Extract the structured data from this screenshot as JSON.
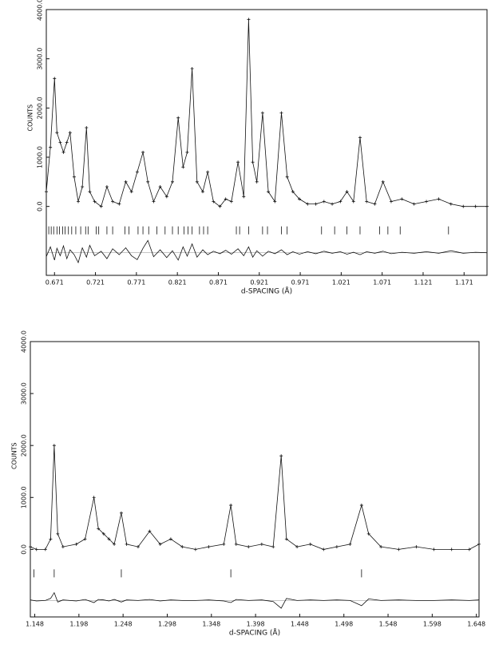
{
  "chart_data": [
    {
      "type": "line",
      "color": "#111",
      "ylabel": "COUNTS",
      "xlabel": "d-SPACING (Å)",
      "xlim": [
        0.661,
        1.199
      ],
      "ylim": [
        -1400,
        4000
      ],
      "xticks": [
        0.671,
        0.721,
        0.771,
        0.821,
        0.871,
        0.921,
        0.971,
        1.021,
        1.071,
        1.121,
        1.171
      ],
      "yticks": [
        {
          "value": 0,
          "label": "0.0"
        },
        {
          "value": 1000,
          "label": "1000.0"
        },
        {
          "value": 2000,
          "label": "2000.0"
        },
        {
          "value": 3000,
          "label": "3000.0"
        },
        {
          "value": 4000,
          "label": "4000.0"
        }
      ],
      "x": [
        0.661,
        0.666,
        0.671,
        0.674,
        0.678,
        0.682,
        0.686,
        0.69,
        0.695,
        0.7,
        0.705,
        0.71,
        0.714,
        0.72,
        0.728,
        0.735,
        0.742,
        0.75,
        0.758,
        0.765,
        0.772,
        0.779,
        0.785,
        0.792,
        0.8,
        0.808,
        0.815,
        0.822,
        0.828,
        0.833,
        0.839,
        0.845,
        0.852,
        0.858,
        0.865,
        0.873,
        0.88,
        0.887,
        0.895,
        0.902,
        0.908,
        0.913,
        0.918,
        0.925,
        0.932,
        0.94,
        0.948,
        0.955,
        0.962,
        0.97,
        0.98,
        0.99,
        1.0,
        1.01,
        1.02,
        1.028,
        1.036,
        1.044,
        1.052,
        1.062,
        1.072,
        1.082,
        1.095,
        1.11,
        1.125,
        1.14,
        1.155,
        1.17,
        1.185,
        1.199
      ],
      "values": [
        300,
        1200,
        2600,
        1500,
        1300,
        1100,
        1300,
        1500,
        600,
        100,
        400,
        1600,
        300,
        100,
        0,
        400,
        100,
        50,
        500,
        300,
        700,
        1100,
        500,
        100,
        400,
        200,
        500,
        1800,
        800,
        1100,
        2800,
        500,
        300,
        700,
        100,
        0,
        150,
        100,
        900,
        200,
        3800,
        900,
        500,
        1900,
        300,
        100,
        1900,
        600,
        300,
        150,
        50,
        50,
        100,
        50,
        100,
        300,
        100,
        1400,
        100,
        50,
        500,
        100,
        150,
        50,
        100,
        150,
        50,
        0,
        0,
        0
      ],
      "difference": [
        -80,
        120,
        -150,
        90,
        -60,
        140,
        -120,
        60,
        -40,
        -200,
        100,
        -90,
        150,
        -60,
        30,
        -120,
        80,
        -40,
        100,
        -60,
        -140,
        90,
        250,
        -80,
        60,
        -100,
        40,
        -150,
        120,
        -70,
        180,
        -90,
        60,
        -40,
        30,
        -20,
        50,
        -30,
        80,
        -60,
        120,
        -90,
        40,
        -70,
        30,
        -20,
        60,
        -40,
        20,
        -30,
        20,
        -20,
        30,
        -10,
        20,
        -30,
        10,
        -40,
        20,
        -10,
        30,
        -20,
        10,
        -10,
        20,
        -10,
        40,
        -10,
        10,
        0
      ],
      "reflections": [
        0.664,
        0.667,
        0.67,
        0.674,
        0.677,
        0.681,
        0.684,
        0.688,
        0.692,
        0.697,
        0.703,
        0.709,
        0.712,
        0.722,
        0.725,
        0.735,
        0.742,
        0.757,
        0.762,
        0.773,
        0.779,
        0.786,
        0.796,
        0.806,
        0.815,
        0.822,
        0.829,
        0.834,
        0.839,
        0.848,
        0.853,
        0.858,
        0.893,
        0.897,
        0.908,
        0.925,
        0.931,
        0.948,
        0.955,
        0.997,
        1.013,
        1.028,
        1.044,
        1.068,
        1.078,
        1.093,
        1.152
      ]
    },
    {
      "type": "line",
      "color": "#111",
      "ylabel": "COUNTS",
      "xlabel": "d-SPACING (Å)",
      "xlim": [
        1.143,
        1.651
      ],
      "ylim": [
        -1300,
        4000
      ],
      "xticks": [
        1.148,
        1.198,
        1.248,
        1.298,
        1.348,
        1.398,
        1.448,
        1.498,
        1.548,
        1.598,
        1.648
      ],
      "yticks": [
        {
          "value": 0,
          "label": "0.0"
        },
        {
          "value": 1000,
          "label": "1000.0"
        },
        {
          "value": 2000,
          "label": "2000.0"
        },
        {
          "value": 3000,
          "label": "3000.0"
        },
        {
          "value": 4000,
          "label": "4000.0"
        }
      ],
      "x": [
        1.143,
        1.15,
        1.16,
        1.166,
        1.17,
        1.174,
        1.18,
        1.195,
        1.205,
        1.215,
        1.22,
        1.226,
        1.232,
        1.238,
        1.246,
        1.252,
        1.265,
        1.278,
        1.29,
        1.302,
        1.315,
        1.33,
        1.345,
        1.362,
        1.37,
        1.376,
        1.39,
        1.405,
        1.418,
        1.427,
        1.433,
        1.445,
        1.46,
        1.475,
        1.49,
        1.505,
        1.518,
        1.526,
        1.54,
        1.56,
        1.58,
        1.6,
        1.62,
        1.64,
        1.651
      ],
      "values": [
        50,
        0,
        0,
        200,
        2000,
        300,
        50,
        100,
        200,
        1000,
        400,
        300,
        200,
        100,
        700,
        100,
        50,
        350,
        100,
        200,
        50,
        0,
        50,
        100,
        850,
        100,
        50,
        100,
        50,
        1800,
        200,
        50,
        100,
        0,
        50,
        100,
        850,
        300,
        50,
        0,
        50,
        0,
        0,
        0,
        100
      ],
      "difference": [
        10,
        -10,
        0,
        40,
        150,
        -30,
        10,
        -10,
        20,
        -40,
        20,
        10,
        -10,
        20,
        -30,
        10,
        0,
        20,
        -10,
        10,
        0,
        0,
        10,
        -10,
        -40,
        20,
        0,
        10,
        -20,
        -150,
        40,
        0,
        10,
        0,
        10,
        0,
        -100,
        30,
        0,
        10,
        0,
        0,
        10,
        0,
        10
      ],
      "reflections": [
        1.147,
        1.17,
        1.246,
        1.37,
        1.518
      ]
    }
  ]
}
